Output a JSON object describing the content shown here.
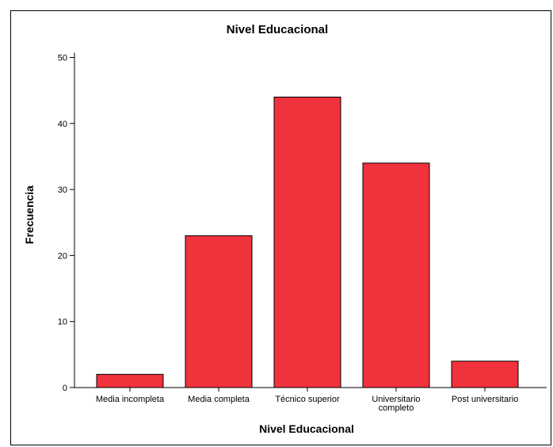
{
  "chart_data": {
    "type": "bar",
    "title": "Nivel Educacional",
    "xlabel": "Nivel Educacional",
    "ylabel": "Frecuencia",
    "categories": [
      "Media incompleta",
      "Media completa",
      "Técnico superior",
      "Universitario completo",
      "Post universitario"
    ],
    "category_lines": [
      [
        "Media incompleta"
      ],
      [
        "Media completa"
      ],
      [
        "Técnico superior"
      ],
      [
        "Universitario",
        "completo"
      ],
      [
        "Post universitario"
      ]
    ],
    "values": [
      2,
      23,
      44,
      34,
      4
    ],
    "yticks": [
      0,
      10,
      20,
      30,
      40,
      50
    ],
    "ylim": [
      0,
      52
    ],
    "bar_color": "#f0323c",
    "grid": false
  }
}
